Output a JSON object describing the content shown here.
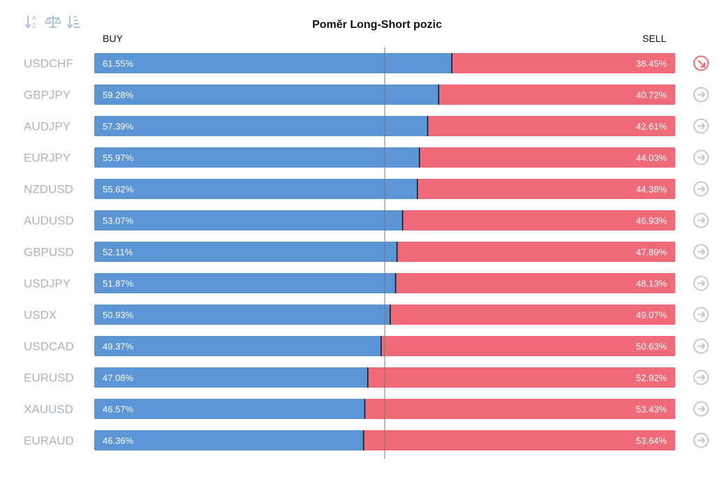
{
  "toolbar": {
    "tools": [
      {
        "icon": "sort-alpha-icon"
      },
      {
        "icon": "balance-scale-icon"
      },
      {
        "icon": "sort-amount-icon"
      }
    ]
  },
  "colors": {
    "buy": "#5b95d6",
    "sell": "#f06b79",
    "divider": "#111111",
    "center_line": "#777777",
    "symbol_text": "#aeb3bb",
    "arrow_neutral": "#c5c8ce",
    "arrow_active": "#f06b79"
  },
  "chart_data": {
    "type": "bar",
    "stacked": true,
    "orientation": "horizontal",
    "title": "Poměr Long-Short pozic",
    "left_label": "BUY",
    "right_label": "SELL",
    "xlim": [
      0,
      100
    ],
    "center_line": 50,
    "categories": [
      "USDCHF",
      "GBPJPY",
      "AUDJPY",
      "EURJPY",
      "NZDUSD",
      "AUDUSD",
      "GBPUSD",
      "USDJPY",
      "USDX",
      "USDCAD",
      "EURUSD",
      "XAUUSD",
      "EURAUD"
    ],
    "series": [
      {
        "name": "BUY",
        "values": [
          61.55,
          59.28,
          57.39,
          55.97,
          55.62,
          53.07,
          52.11,
          51.87,
          50.93,
          49.37,
          47.08,
          46.57,
          46.36
        ],
        "labels": [
          "61.55%",
          "59.28%",
          "57.39%",
          "55.97%",
          "55.62%",
          "53.07%",
          "52.11%",
          "51.87%",
          "50.93%",
          "49.37%",
          "47.08%",
          "46.57%",
          "46.36%"
        ]
      },
      {
        "name": "SELL",
        "values": [
          38.45,
          40.72,
          42.61,
          44.03,
          44.38,
          46.93,
          47.89,
          48.13,
          49.07,
          50.63,
          52.92,
          53.43,
          53.64
        ],
        "labels": [
          "38.45%",
          "40.72%",
          "42.61%",
          "44.03%",
          "44.38%",
          "46.93%",
          "47.89%",
          "48.13%",
          "49.07%",
          "50.63%",
          "52.92%",
          "53.43%",
          "53.64%"
        ]
      }
    ],
    "arrow_icons": [
      "arrow-down-right-icon",
      "arrow-right-icon",
      "arrow-right-icon",
      "arrow-right-icon",
      "arrow-right-icon",
      "arrow-right-icon",
      "arrow-right-icon",
      "arrow-right-icon",
      "arrow-right-icon",
      "arrow-right-icon",
      "arrow-right-icon",
      "arrow-right-icon",
      "arrow-right-icon"
    ]
  }
}
